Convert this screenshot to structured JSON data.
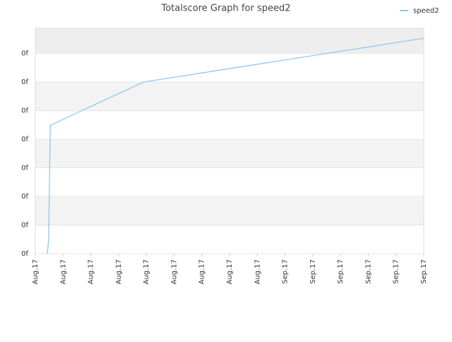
{
  "chart_data": {
    "type": "line",
    "title": "Totalscore Graph for speed2",
    "series": [
      {
        "name": "speed2",
        "color": "#8ec9f0",
        "x": [
          0.43,
          0.48,
          0.51,
          0.54,
          3.9,
          14
        ],
        "values": [
          0,
          0.47,
          2.44,
          4.49,
          6.0,
          7.53
        ]
      }
    ],
    "xlim": [
      0,
      14
    ],
    "xticks": [
      {
        "value": 0,
        "label": "Aug.17"
      },
      {
        "value": 1,
        "label": "Aug.17"
      },
      {
        "value": 2,
        "label": "Aug.17"
      },
      {
        "value": 3,
        "label": "Aug.17"
      },
      {
        "value": 4,
        "label": "Aug.17"
      },
      {
        "value": 5,
        "label": "Aug.17"
      },
      {
        "value": 6,
        "label": "Aug.17"
      },
      {
        "value": 7,
        "label": "Aug.17"
      },
      {
        "value": 8,
        "label": "Aug.17"
      },
      {
        "value": 9,
        "label": "Sep.17"
      },
      {
        "value": 10,
        "label": "Sep.17"
      },
      {
        "value": 11,
        "label": "Sep.17"
      },
      {
        "value": 12,
        "label": "Sep.17"
      },
      {
        "value": 13,
        "label": "Sep.17"
      },
      {
        "value": 14,
        "label": "Sep.17"
      }
    ],
    "ylim": [
      0,
      7.88
    ],
    "yticks": [
      {
        "value": 0,
        "label": "0f"
      },
      {
        "value": 1,
        "label": "0f"
      },
      {
        "value": 2,
        "label": "0f"
      },
      {
        "value": 3,
        "label": "0f"
      },
      {
        "value": 4,
        "label": "0f"
      },
      {
        "value": 5,
        "label": "0f"
      },
      {
        "value": 6,
        "label": "0f"
      },
      {
        "value": 7,
        "label": "0f"
      }
    ],
    "grid": true,
    "legend": "top-right"
  }
}
